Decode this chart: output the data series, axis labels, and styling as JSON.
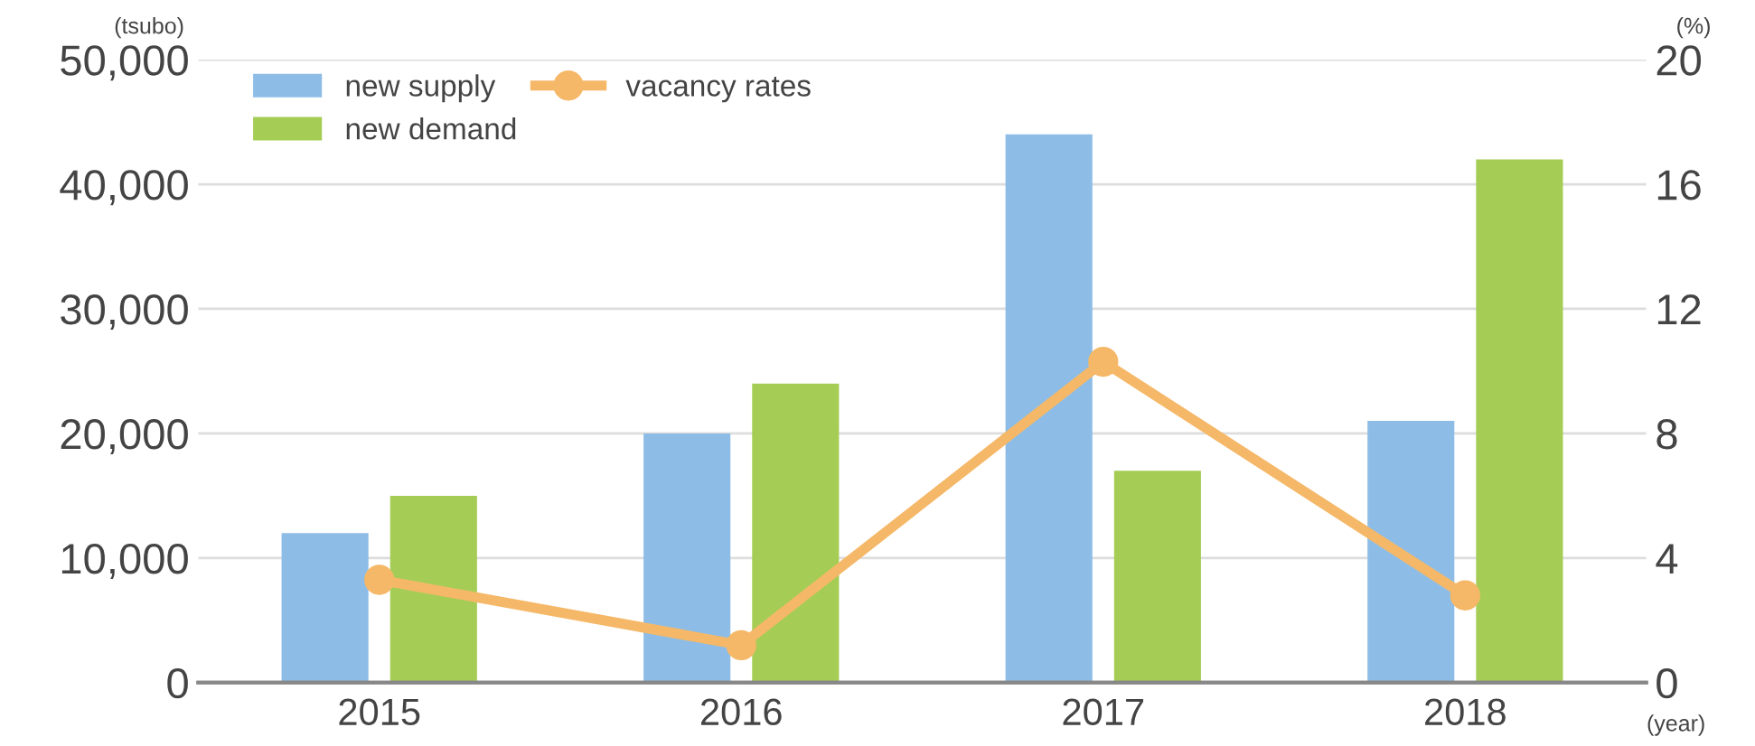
{
  "chart_data": {
    "type": "bar",
    "categories": [
      "2015",
      "2016",
      "2017",
      "2018"
    ],
    "series": [
      {
        "name": "new supply",
        "color": "#8dbde6",
        "values": [
          12000,
          20000,
          44000,
          21000
        ]
      },
      {
        "name": "new demand",
        "color": "#a5cd55",
        "values": [
          15000,
          24000,
          17000,
          42000
        ]
      },
      {
        "name": "vacancy rates",
        "type": "line",
        "axis": "y2",
        "color": "#f5b868",
        "marker": "circle",
        "values": [
          3.3,
          1.2,
          10.3,
          2.8
        ]
      }
    ],
    "ylabel": "(tsubo)",
    "y2label": "(%)",
    "xlabel": "(year)",
    "ylim": [
      0,
      50000
    ],
    "yticks": [
      {
        "value": 0,
        "label": "0"
      },
      {
        "value": 10000,
        "label": "10,000"
      },
      {
        "value": 20000,
        "label": "20,000"
      },
      {
        "value": 30000,
        "label": "30,000"
      },
      {
        "value": 40000,
        "label": "40,000"
      },
      {
        "value": 50000,
        "label": "50,000"
      }
    ],
    "y2lim": [
      0,
      20
    ],
    "y2ticks": [
      0,
      4,
      8,
      12,
      16,
      20
    ],
    "grid": "y",
    "legend": "top left"
  }
}
